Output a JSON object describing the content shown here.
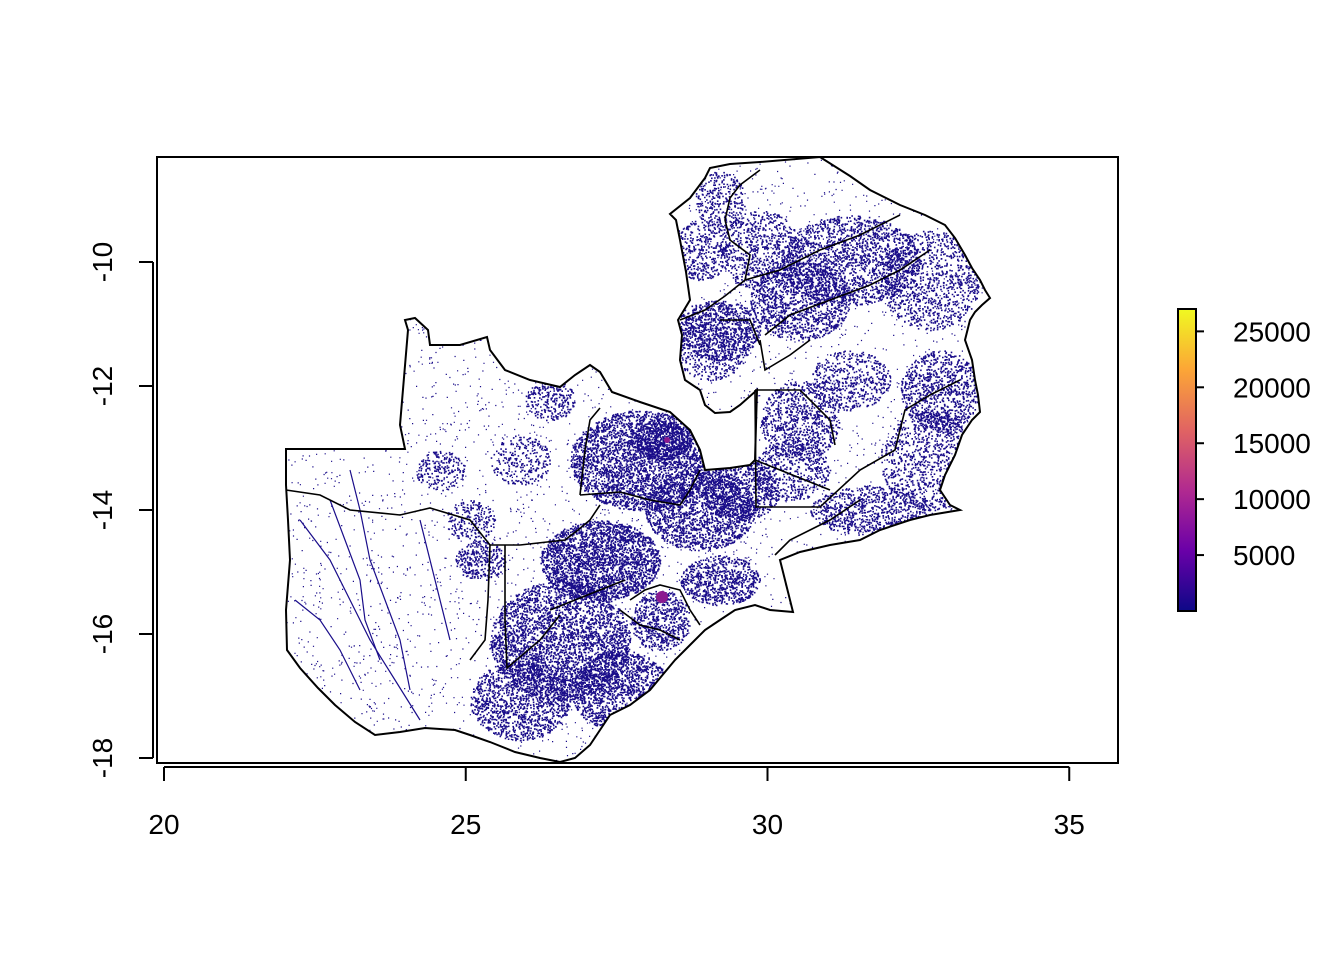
{
  "map": {
    "x_ticks": [
      "20",
      "25",
      "30",
      "35"
    ],
    "y_ticks": [
      "-10",
      "-12",
      "-14",
      "-16",
      "-18"
    ],
    "xlim": [
      19.9,
      35.8
    ],
    "ylim": [
      -18.0,
      -8.25
    ],
    "legend": {
      "ticks": [
        "5000",
        "10000",
        "15000",
        "20000",
        "25000"
      ],
      "range": [
        0,
        27000
      ],
      "palette": [
        "#0d0887",
        "#6a00a8",
        "#b12a90",
        "#e16462",
        "#fca636",
        "#f0f921"
      ]
    },
    "fill_color": "#1a0d8a",
    "hotspot_color": "#8b1a8f",
    "border_color": "#000000"
  }
}
